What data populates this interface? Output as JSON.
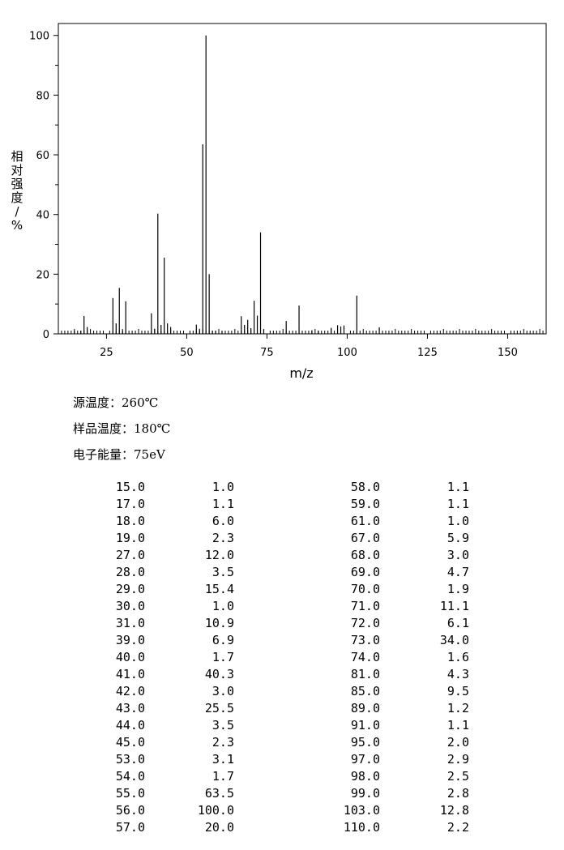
{
  "chart_data": {
    "type": "bar",
    "xlabel": "m/z",
    "ylabel": "相对强度/%",
    "xlim": [
      10,
      162
    ],
    "ylim": [
      0,
      104
    ],
    "xticks": [
      25,
      50,
      75,
      100,
      125,
      150
    ],
    "yticks": [
      0,
      20,
      40,
      60,
      80,
      100
    ],
    "grid": false,
    "peaks": [
      {
        "mz": 15,
        "intensity": 1.0
      },
      {
        "mz": 17,
        "intensity": 1.1
      },
      {
        "mz": 18,
        "intensity": 6.0
      },
      {
        "mz": 19,
        "intensity": 2.3
      },
      {
        "mz": 27,
        "intensity": 12.0
      },
      {
        "mz": 28,
        "intensity": 3.5
      },
      {
        "mz": 29,
        "intensity": 15.4
      },
      {
        "mz": 30,
        "intensity": 1.0
      },
      {
        "mz": 31,
        "intensity": 10.9
      },
      {
        "mz": 39,
        "intensity": 6.9
      },
      {
        "mz": 40,
        "intensity": 1.7
      },
      {
        "mz": 41,
        "intensity": 40.3
      },
      {
        "mz": 42,
        "intensity": 3.0
      },
      {
        "mz": 43,
        "intensity": 25.5
      },
      {
        "mz": 44,
        "intensity": 3.5
      },
      {
        "mz": 45,
        "intensity": 2.3
      },
      {
        "mz": 53,
        "intensity": 3.1
      },
      {
        "mz": 54,
        "intensity": 1.7
      },
      {
        "mz": 55,
        "intensity": 63.5
      },
      {
        "mz": 56,
        "intensity": 100.0
      },
      {
        "mz": 57,
        "intensity": 20.0
      },
      {
        "mz": 58,
        "intensity": 1.1
      },
      {
        "mz": 59,
        "intensity": 1.1
      },
      {
        "mz": 61,
        "intensity": 1.0
      },
      {
        "mz": 67,
        "intensity": 5.9
      },
      {
        "mz": 68,
        "intensity": 3.0
      },
      {
        "mz": 69,
        "intensity": 4.7
      },
      {
        "mz": 70,
        "intensity": 1.9
      },
      {
        "mz": 71,
        "intensity": 11.1
      },
      {
        "mz": 72,
        "intensity": 6.1
      },
      {
        "mz": 73,
        "intensity": 34.0
      },
      {
        "mz": 74,
        "intensity": 1.6
      },
      {
        "mz": 81,
        "intensity": 4.3
      },
      {
        "mz": 85,
        "intensity": 9.5
      },
      {
        "mz": 89,
        "intensity": 1.2
      },
      {
        "mz": 91,
        "intensity": 1.1
      },
      {
        "mz": 95,
        "intensity": 2.0
      },
      {
        "mz": 97,
        "intensity": 2.9
      },
      {
        "mz": 98,
        "intensity": 2.5
      },
      {
        "mz": 99,
        "intensity": 2.8
      },
      {
        "mz": 103,
        "intensity": 12.8
      },
      {
        "mz": 110,
        "intensity": 2.2
      }
    ]
  },
  "conditions": {
    "source_temp": "源温度：260℃",
    "sample_temp": "样品温度：180℃",
    "electron_energy": "电子能量：75eV"
  },
  "peak_table": {
    "left": [
      [
        "15.0",
        "1.0"
      ],
      [
        "17.0",
        "1.1"
      ],
      [
        "18.0",
        "6.0"
      ],
      [
        "19.0",
        "2.3"
      ],
      [
        "27.0",
        "12.0"
      ],
      [
        "28.0",
        "3.5"
      ],
      [
        "29.0",
        "15.4"
      ],
      [
        "30.0",
        "1.0"
      ],
      [
        "31.0",
        "10.9"
      ],
      [
        "39.0",
        "6.9"
      ],
      [
        "40.0",
        "1.7"
      ],
      [
        "41.0",
        "40.3"
      ],
      [
        "42.0",
        "3.0"
      ],
      [
        "43.0",
        "25.5"
      ],
      [
        "44.0",
        "3.5"
      ],
      [
        "45.0",
        "2.3"
      ],
      [
        "53.0",
        "3.1"
      ],
      [
        "54.0",
        "1.7"
      ],
      [
        "55.0",
        "63.5"
      ],
      [
        "56.0",
        "100.0"
      ],
      [
        "57.0",
        "20.0"
      ]
    ],
    "right": [
      [
        "58.0",
        "1.1"
      ],
      [
        "59.0",
        "1.1"
      ],
      [
        "61.0",
        "1.0"
      ],
      [
        "67.0",
        "5.9"
      ],
      [
        "68.0",
        "3.0"
      ],
      [
        "69.0",
        "4.7"
      ],
      [
        "70.0",
        "1.9"
      ],
      [
        "71.0",
        "11.1"
      ],
      [
        "72.0",
        "6.1"
      ],
      [
        "73.0",
        "34.0"
      ],
      [
        "74.0",
        "1.6"
      ],
      [
        "81.0",
        "4.3"
      ],
      [
        "85.0",
        "9.5"
      ],
      [
        "89.0",
        "1.2"
      ],
      [
        "91.0",
        "1.1"
      ],
      [
        "95.0",
        "2.0"
      ],
      [
        "97.0",
        "2.9"
      ],
      [
        "98.0",
        "2.5"
      ],
      [
        "99.0",
        "2.8"
      ],
      [
        "103.0",
        "12.8"
      ],
      [
        "110.0",
        "2.2"
      ]
    ]
  }
}
